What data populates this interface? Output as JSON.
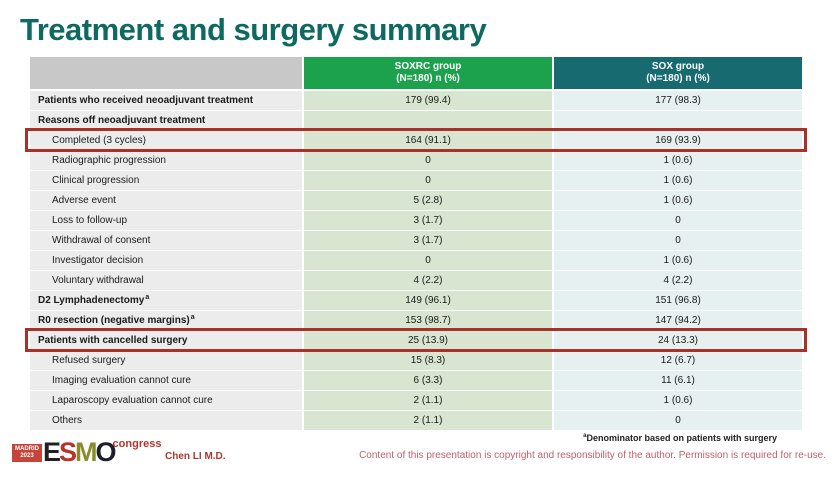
{
  "slide": {
    "title": "Treatment and surgery summary"
  },
  "table": {
    "header": {
      "group1_label": "SOXRC group",
      "group1_sublabel": "(N=180)  n (%)",
      "group2_label": "SOX group",
      "group2_sublabel": "(N=180)  n (%)"
    },
    "rows": [
      {
        "label": "Patients who received neoadjuvant treatment",
        "bold": true,
        "indent": false,
        "soxrc": "179 (99.4)",
        "sox": "177 (98.3)",
        "highlight": false
      },
      {
        "label": "Reasons off neoadjuvant treatment",
        "bold": true,
        "indent": false,
        "soxrc": "",
        "sox": "",
        "highlight": false
      },
      {
        "label": "Completed (3 cycles)",
        "bold": false,
        "indent": true,
        "soxrc": "164 (91.1)",
        "sox": "169 (93.9)",
        "highlight": true
      },
      {
        "label": "Radiographic progression",
        "bold": false,
        "indent": true,
        "soxrc": "0",
        "sox": "1 (0.6)",
        "highlight": false
      },
      {
        "label": "Clinical progression",
        "bold": false,
        "indent": true,
        "soxrc": "0",
        "sox": "1 (0.6)",
        "highlight": false
      },
      {
        "label": "Adverse event",
        "bold": false,
        "indent": true,
        "soxrc": "5 (2.8)",
        "sox": "1 (0.6)",
        "highlight": false
      },
      {
        "label": "Loss to follow-up",
        "bold": false,
        "indent": true,
        "soxrc": "3 (1.7)",
        "sox": "0",
        "highlight": false
      },
      {
        "label": "Withdrawal of consent",
        "bold": false,
        "indent": true,
        "soxrc": "3 (1.7)",
        "sox": "0",
        "highlight": false
      },
      {
        "label": "Investigator decision",
        "bold": false,
        "indent": true,
        "soxrc": "0",
        "sox": "1 (0.6)",
        "highlight": false
      },
      {
        "label": "Voluntary withdrawal",
        "bold": false,
        "indent": true,
        "soxrc": "4 (2.2)",
        "sox": "4 (2.2)",
        "highlight": false
      },
      {
        "label": "D2 Lymphadenectomy",
        "sup": "a",
        "bold": true,
        "indent": false,
        "soxrc": "149 (96.1)",
        "sox": "151 (96.8)",
        "highlight": false
      },
      {
        "label": "R0 resection (negative margins)",
        "sup": "a",
        "bold": true,
        "indent": false,
        "soxrc": "153 (98.7)",
        "sox": "147 (94.2)",
        "highlight": false
      },
      {
        "label": "Patients with cancelled surgery",
        "bold": true,
        "indent": false,
        "soxrc": "25 (13.9)",
        "sox": "24 (13.3)",
        "highlight": true
      },
      {
        "label": "Refused surgery",
        "bold": false,
        "indent": true,
        "soxrc": "15 (8.3)",
        "sox": "12 (6.7)",
        "highlight": false
      },
      {
        "label": "Imaging evaluation cannot cure",
        "bold": false,
        "indent": true,
        "soxrc": "6 (3.3)",
        "sox": "11 (6.1)",
        "highlight": false
      },
      {
        "label": "Laparoscopy evaluation cannot cure",
        "bold": false,
        "indent": true,
        "soxrc": "2 (1.1)",
        "sox": "1 (0.6)",
        "highlight": false
      },
      {
        "label": "Others",
        "bold": false,
        "indent": true,
        "soxrc": "2 (1.1)",
        "sox": "0",
        "highlight": false
      }
    ]
  },
  "footer": {
    "logo": {
      "city": "MADRID",
      "year": "2023",
      "letters": [
        "E",
        "S",
        "M",
        "O"
      ],
      "congress": "congress"
    },
    "presenter": "Chen LI M.D.",
    "footnote_sup": "a",
    "footnote": "Denominator based on patients with surgery",
    "copyright": "Content of this presentation is copyright and responsibility of the author.  Permission is required for re-use."
  },
  "colors": {
    "title": "#0e6a60",
    "header_soxrc_bg": "#1ca24c",
    "header_sox_bg": "#176b70",
    "header_label_bg": "#c8c8c8",
    "label_col_bg": "#edecec",
    "soxrc_col_bg": "#d8e5d0",
    "sox_col_bg": "#e6f0f1",
    "highlight_border": "#a8322a",
    "presenter_text": "#a93a31",
    "copyright_text": "#c0606a"
  }
}
